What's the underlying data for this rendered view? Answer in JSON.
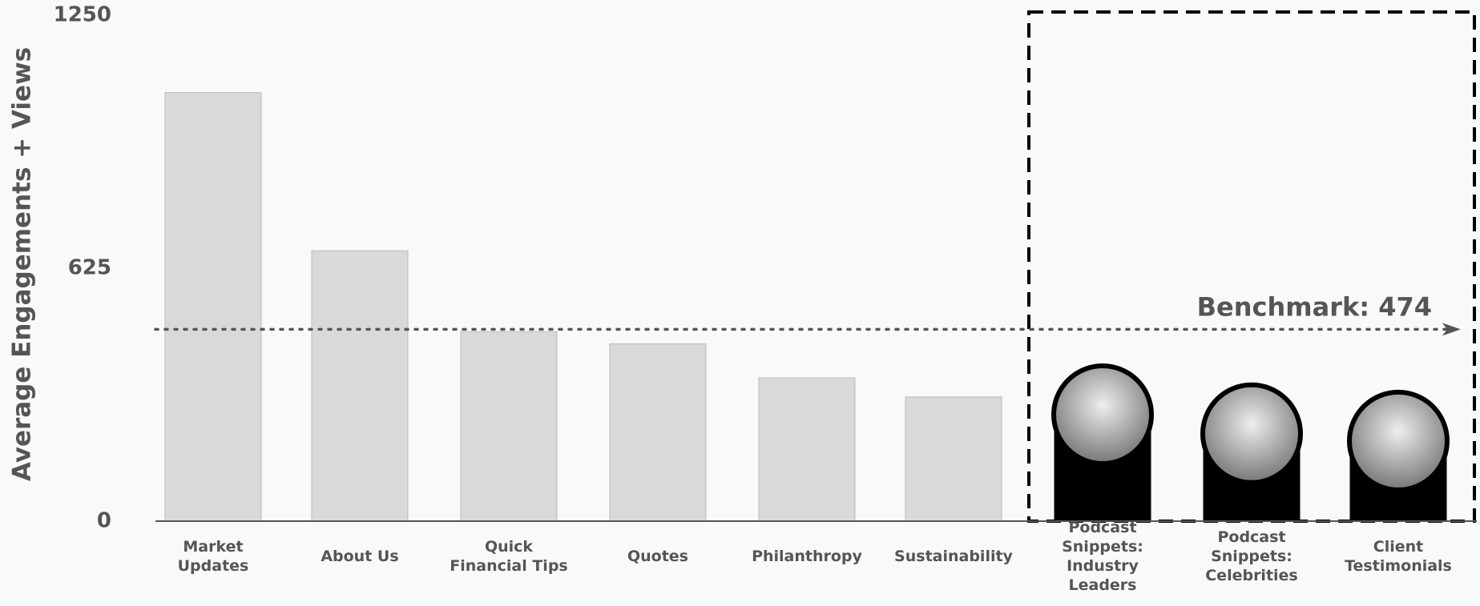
{
  "chart_data": {
    "type": "bar",
    "y_label": "Average Engagements + Views",
    "categories": [
      "Market\nUpdates",
      "About Us",
      "Quick\nFinancial Tips",
      "Quotes",
      "Philanthropy",
      "Sustainability",
      "Podcast\nSnippets:\nIndustry\nLeaders",
      "Podcast\nSnippets:\nCelebrities",
      "Client\nTestimonials"
    ],
    "values": [
      1059,
      668,
      468,
      438,
      354,
      307,
      263,
      216,
      198
    ],
    "colors": [
      "#d9d9d9",
      "#d9d9d9",
      "#d9d9d9",
      "#d9d9d9",
      "#d9d9d9",
      "#d9d9d9",
      "#000000",
      "#000000",
      "#000000"
    ],
    "ylim": [
      0,
      1250
    ],
    "yticks": [
      0,
      625,
      1250
    ],
    "benchmark": {
      "value": 474,
      "label": "Benchmark: 474"
    }
  }
}
